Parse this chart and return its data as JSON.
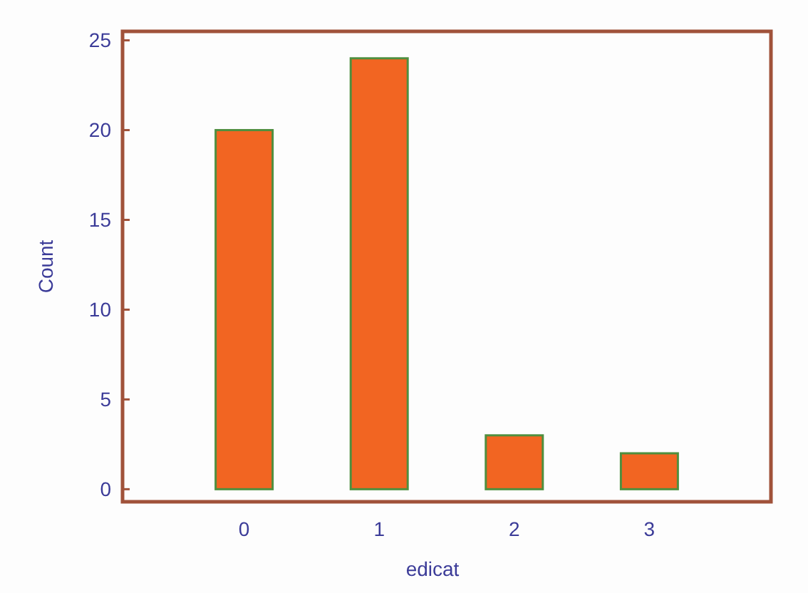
{
  "chart_data": {
    "type": "bar",
    "xlabel": "edicat",
    "ylabel": "Count",
    "categories": [
      "0",
      "1",
      "2",
      "3"
    ],
    "values": [
      20,
      24,
      3,
      2
    ],
    "color": "#f26522",
    "ylim": [
      -0.7,
      25.5
    ],
    "yticks": [
      0,
      5,
      10,
      15,
      20,
      25
    ],
    "grid": false
  }
}
